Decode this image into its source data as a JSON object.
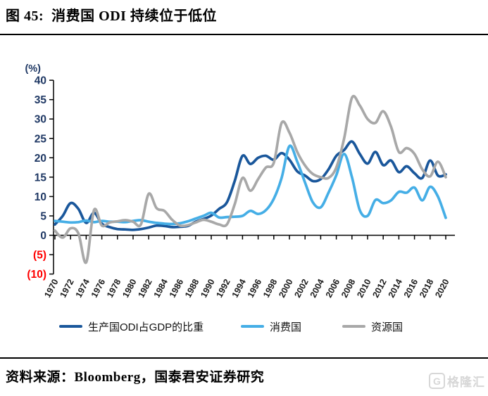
{
  "title": "图 45:  消费国 ODI 持续位于低位",
  "source_note": "资料来源：Bloomberg，国泰君安证券研究",
  "watermark": {
    "icon": "G",
    "text": "格隆汇"
  },
  "colors": {
    "axis": "#000000",
    "y_tick_label": "#1f3864",
    "y_tick_negative": "#ff0000",
    "x_tick_label": "#1a1a1a"
  },
  "chart_data": {
    "type": "line",
    "title": "消费国 ODI 持续位于低位",
    "xlabel": "",
    "ylabel": "(%)",
    "ylim": [
      -10,
      40
    ],
    "ytick_step": 5,
    "grid": false,
    "legend_position": "bottom",
    "y_ticks": [
      {
        "v": 40,
        "label": "40"
      },
      {
        "v": 35,
        "label": "35"
      },
      {
        "v": 30,
        "label": "30"
      },
      {
        "v": 25,
        "label": "25"
      },
      {
        "v": 20,
        "label": "20"
      },
      {
        "v": 15,
        "label": "15"
      },
      {
        "v": 10,
        "label": "10"
      },
      {
        "v": 5,
        "label": "5"
      },
      {
        "v": 0,
        "label": "0"
      },
      {
        "v": -5,
        "label": "(5)"
      },
      {
        "v": -10,
        "label": "(10)"
      }
    ],
    "x": [
      1970,
      1971,
      1972,
      1973,
      1974,
      1975,
      1976,
      1977,
      1978,
      1979,
      1980,
      1981,
      1982,
      1983,
      1984,
      1985,
      1986,
      1987,
      1988,
      1989,
      1990,
      1991,
      1992,
      1993,
      1994,
      1995,
      1996,
      1997,
      1998,
      1999,
      2000,
      2001,
      2002,
      2003,
      2004,
      2005,
      2006,
      2007,
      2008,
      2009,
      2010,
      2011,
      2012,
      2013,
      2014,
      2015,
      2016,
      2017,
      2018,
      2019,
      2020
    ],
    "xtick_labels": [
      "1970",
      "1972",
      "1974",
      "1976",
      "1978",
      "1980",
      "1982",
      "1984",
      "1986",
      "1988",
      "1990",
      "1992",
      "1994",
      "1996",
      "1998",
      "2000",
      "2002",
      "2004",
      "2006",
      "2008",
      "2010",
      "2012",
      "2014",
      "2016",
      "2018",
      "2020"
    ],
    "series": [
      {
        "name": "生产国ODI占GDP的比重",
        "color": "#1a579b",
        "values": [
          2.8,
          5.0,
          8.3,
          6.8,
          3.2,
          5.8,
          3.0,
          2.1,
          1.6,
          1.5,
          1.4,
          1.6,
          2.0,
          2.5,
          2.4,
          2.1,
          2.2,
          2.4,
          3.5,
          4.2,
          5.1,
          6.8,
          8.5,
          14.0,
          20.5,
          18.4,
          20.0,
          20.5,
          19.5,
          21.2,
          19.5,
          16.5,
          15.4,
          14.0,
          14.5,
          17.0,
          20.5,
          22.0,
          24.2,
          21.0,
          18.5,
          21.5,
          18.1,
          19.3,
          16.3,
          17.8,
          16.0,
          14.8,
          19.3,
          15.4,
          15.7
        ]
      },
      {
        "name": "消费国",
        "color": "#45aee6",
        "values": [
          3.7,
          3.5,
          3.3,
          3.4,
          3.8,
          3.4,
          3.7,
          3.5,
          3.5,
          3.4,
          3.7,
          3.9,
          3.5,
          3.2,
          3.0,
          2.9,
          3.1,
          3.6,
          4.3,
          5.0,
          5.8,
          4.6,
          4.7,
          4.8,
          5.0,
          6.3,
          5.5,
          6.5,
          9.4,
          14.8,
          23.0,
          19.0,
          13.6,
          8.5,
          7.2,
          11.0,
          15.5,
          21.0,
          15.0,
          6.5,
          5.0,
          9.1,
          8.3,
          9.0,
          11.2,
          11.0,
          12.3,
          9.0,
          12.5,
          10.0,
          4.5
        ]
      },
      {
        "name": "资源国",
        "color": "#a8a8a8",
        "values": [
          1.2,
          -0.6,
          1.8,
          0.5,
          -7.0,
          6.5,
          2.5,
          3.3,
          3.6,
          3.9,
          3.5,
          2.8,
          10.7,
          7.0,
          6.3,
          4.0,
          2.5,
          2.6,
          3.3,
          4.0,
          3.5,
          2.8,
          2.8,
          8.0,
          14.8,
          11.5,
          14.5,
          17.5,
          18.7,
          29.0,
          26.5,
          21.5,
          18.0,
          15.8,
          15.0,
          14.8,
          17.5,
          25.0,
          35.5,
          33.5,
          30.0,
          29.0,
          32.0,
          28.0,
          21.5,
          22.5,
          21.0,
          17.0,
          15.2,
          19.0,
          15.0
        ]
      }
    ]
  }
}
